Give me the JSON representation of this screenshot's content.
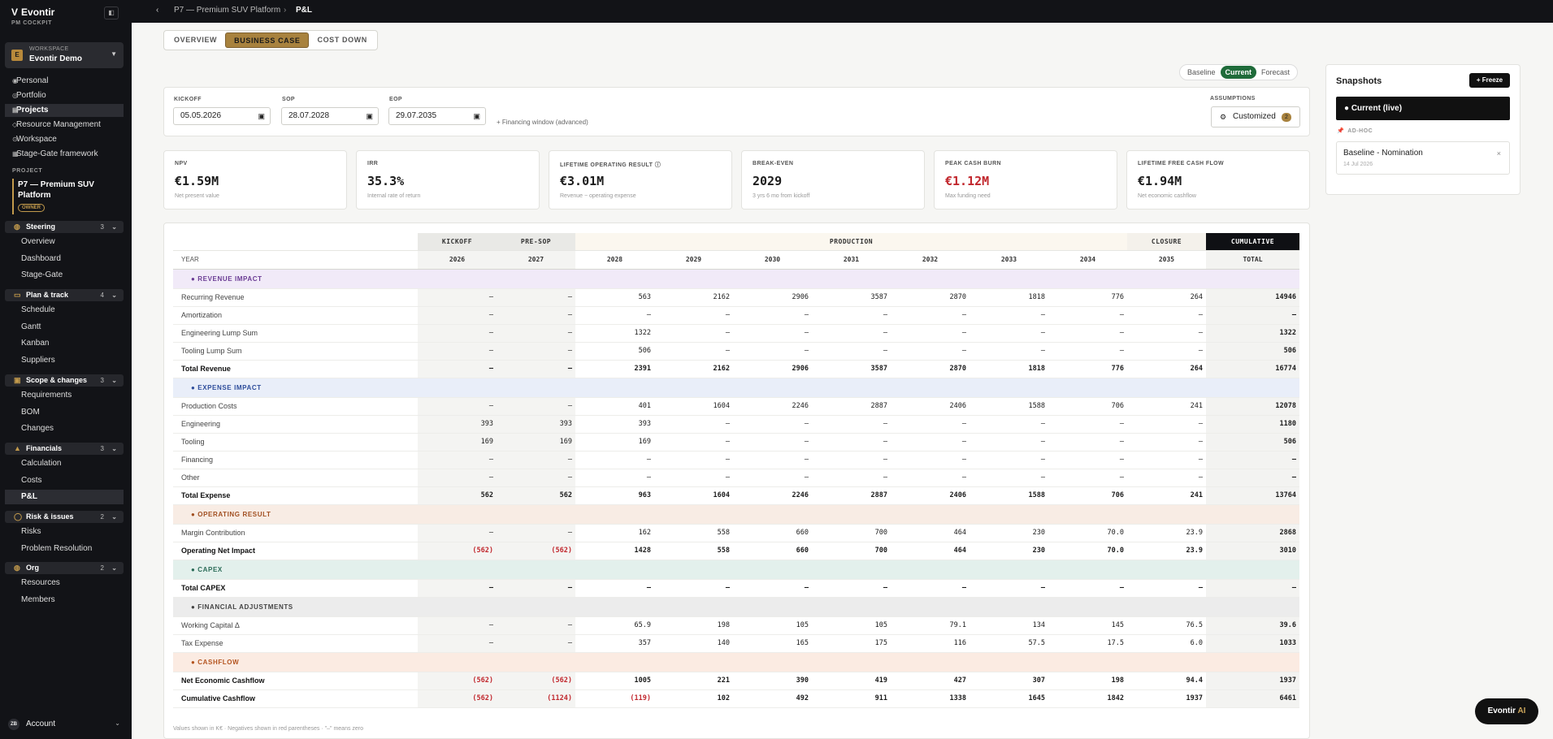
{
  "app": {
    "name": "Evontir",
    "subtitle": "PM COCKPIT",
    "logo": "V"
  },
  "workspace": {
    "label": "WORKSPACE",
    "name": "Evontir Demo",
    "badge": "E"
  },
  "nav": [
    {
      "label": "Personal",
      "icon": "user-icon"
    },
    {
      "label": "Portfolio",
      "icon": "portfolio-icon"
    },
    {
      "label": "Projects",
      "icon": "projects-icon",
      "active": true
    },
    {
      "label": "Resource Management",
      "icon": "resource-icon"
    },
    {
      "label": "Workspace",
      "icon": "workspace-icon"
    },
    {
      "label": "Stage-Gate framework",
      "icon": "stagegate-icon"
    }
  ],
  "project": {
    "label": "PROJECT",
    "name": "P7 — Premium SUV Platform",
    "role": "OWNER"
  },
  "groups": [
    {
      "label": "Steering",
      "count": "3",
      "items": [
        "Overview",
        "Dashboard",
        "Stage-Gate"
      ]
    },
    {
      "label": "Plan & track",
      "count": "4",
      "items": [
        "Schedule",
        "Gantt",
        "Kanban",
        "Suppliers"
      ]
    },
    {
      "label": "Scope & changes",
      "count": "3",
      "items": [
        "Requirements",
        "BOM",
        "Changes"
      ]
    },
    {
      "label": "Financials",
      "count": "3",
      "items": [
        "Calculation",
        "Costs",
        "P&L"
      ]
    },
    {
      "label": "Risk & issues",
      "count": "2",
      "items": [
        "Risks",
        "Problem Resolution"
      ]
    },
    {
      "label": "Org",
      "count": "2",
      "items": [
        "Resources",
        "Members"
      ]
    }
  ],
  "account": {
    "label": "Account",
    "initials": "ZB"
  },
  "breadcrumb": {
    "project": "P7 — Premium SUV Platform",
    "separator": "›",
    "page": "P&L"
  },
  "tabs": [
    "OVERVIEW",
    "BUSINESS CASE",
    "COST DOWN"
  ],
  "scenarios": [
    "Baseline",
    "Current",
    "Forecast"
  ],
  "dates": {
    "kickoff_label": "KICKOFF",
    "kickoff": "05.05.2026",
    "sop_label": "SOP",
    "sop": "28.07.2028",
    "eop_label": "EOP",
    "eop": "29.07.2035",
    "financing_link": "+ Financing window (advanced)"
  },
  "assumptions": {
    "label": "ASSUMPTIONS",
    "button": "Customized",
    "count": "2"
  },
  "kpis": [
    {
      "label": "NPV",
      "value": "€1.59M",
      "sub": "Net present value",
      "red": false
    },
    {
      "label": "IRR",
      "value": "35.3%",
      "sub": "Internal rate of return",
      "red": false
    },
    {
      "label": "LIFETIME OPERATING RESULT ⓘ",
      "value": "€3.01M",
      "sub": "Revenue − operating expense",
      "red": false
    },
    {
      "label": "BREAK-EVEN",
      "value": "2029",
      "sub": "3 yrs 6 mo from kickoff",
      "red": false
    },
    {
      "label": "PEAK CASH BURN",
      "value": "€1.12M",
      "sub": "Max funding need",
      "red": true
    },
    {
      "label": "LIFETIME FREE CASH FLOW",
      "value": "€1.94M",
      "sub": "Net economic cashflow",
      "red": false
    }
  ],
  "snapshots": {
    "title": "Snapshots",
    "freeze": "+ Freeze",
    "current": "● Current (live)",
    "adhoc": "AD-HOC",
    "item_title": "Baseline - Nomination",
    "item_date": "14 Jul 2026"
  },
  "table": {
    "phases": {
      "kickoff": "KICKOFF",
      "presop": "PRE-SOP",
      "production": "PRODUCTION",
      "closure": "CLOSURE",
      "cumulative": "CUMULATIVE"
    },
    "year_label": "YEAR",
    "years": [
      "2026",
      "2027",
      "2028",
      "2029",
      "2030",
      "2031",
      "2032",
      "2033",
      "2034",
      "2035"
    ],
    "total_label": "TOTAL",
    "rows": [
      {
        "type": "sec",
        "cls": "s-rev",
        "label": "● REVENUE IMPACT"
      },
      {
        "label": "Recurring Revenue",
        "v": [
          "–",
          "–",
          "563",
          "2162",
          "2906",
          "3587",
          "2870",
          "1818",
          "776",
          "264",
          "14946"
        ]
      },
      {
        "label": "Amortization",
        "v": [
          "–",
          "–",
          "–",
          "–",
          "–",
          "–",
          "–",
          "–",
          "–",
          "–",
          "–"
        ]
      },
      {
        "label": "Engineering Lump Sum",
        "v": [
          "–",
          "–",
          "1322",
          "–",
          "–",
          "–",
          "–",
          "–",
          "–",
          "–",
          "1322"
        ]
      },
      {
        "label": "Tooling Lump Sum",
        "v": [
          "–",
          "–",
          "506",
          "–",
          "–",
          "–",
          "–",
          "–",
          "–",
          "–",
          "506"
        ]
      },
      {
        "label": "Total Revenue",
        "total": true,
        "v": [
          "–",
          "–",
          "2391",
          "2162",
          "2906",
          "3587",
          "2870",
          "1818",
          "776",
          "264",
          "16774"
        ]
      },
      {
        "type": "sec",
        "cls": "s-exp",
        "label": "● EXPENSE IMPACT"
      },
      {
        "label": "Production Costs",
        "v": [
          "–",
          "–",
          "401",
          "1604",
          "2246",
          "2887",
          "2406",
          "1588",
          "706",
          "241",
          "12078"
        ]
      },
      {
        "label": "Engineering",
        "v": [
          "393",
          "393",
          "393",
          "–",
          "–",
          "–",
          "–",
          "–",
          "–",
          "–",
          "1180"
        ]
      },
      {
        "label": "Tooling",
        "v": [
          "169",
          "169",
          "169",
          "–",
          "–",
          "–",
          "–",
          "–",
          "–",
          "–",
          "506"
        ]
      },
      {
        "label": "Financing",
        "v": [
          "–",
          "–",
          "–",
          "–",
          "–",
          "–",
          "–",
          "–",
          "–",
          "–",
          "–"
        ]
      },
      {
        "label": "Other",
        "v": [
          "–",
          "–",
          "–",
          "–",
          "–",
          "–",
          "–",
          "–",
          "–",
          "–",
          "–"
        ]
      },
      {
        "label": "Total Expense",
        "total": true,
        "v": [
          "562",
          "562",
          "963",
          "1604",
          "2246",
          "2887",
          "2406",
          "1588",
          "706",
          "241",
          "13764"
        ]
      },
      {
        "type": "sec",
        "cls": "s-op",
        "label": "● OPERATING RESULT"
      },
      {
        "label": "Margin Contribution",
        "v": [
          "–",
          "–",
          "162",
          "558",
          "660",
          "700",
          "464",
          "230",
          "70.0",
          "23.9",
          "2868"
        ]
      },
      {
        "label": "Operating Net Impact",
        "total": true,
        "v": [
          "(562)",
          "(562)",
          "1428",
          "558",
          "660",
          "700",
          "464",
          "230",
          "70.0",
          "23.9",
          "3010"
        ]
      },
      {
        "type": "sec",
        "cls": "s-cap",
        "label": "● CAPEX"
      },
      {
        "label": "Total CAPEX",
        "total": true,
        "v": [
          "–",
          "–",
          "–",
          "–",
          "–",
          "–",
          "–",
          "–",
          "–",
          "–",
          "–"
        ]
      },
      {
        "type": "sec",
        "cls": "s-fa",
        "label": "● FINANCIAL ADJUSTMENTS"
      },
      {
        "label": "Working Capital Δ",
        "v": [
          "–",
          "–",
          "65.9",
          "198",
          "105",
          "105",
          "79.1",
          "134",
          "145",
          "76.5",
          "39.6"
        ]
      },
      {
        "label": "Tax Expense",
        "v": [
          "–",
          "–",
          "357",
          "140",
          "165",
          "175",
          "116",
          "57.5",
          "17.5",
          "6.0",
          "1033"
        ]
      },
      {
        "type": "sec",
        "cls": "s-cf",
        "label": "● CASHFLOW"
      },
      {
        "label": "Net Economic Cashflow",
        "total": true,
        "v": [
          "(562)",
          "(562)",
          "1005",
          "221",
          "390",
          "419",
          "427",
          "307",
          "198",
          "94.4",
          "1937"
        ]
      },
      {
        "label": "Cumulative Cashflow",
        "total": true,
        "v": [
          "(562)",
          "(1124)",
          "(119)",
          "102",
          "492",
          "911",
          "1338",
          "1645",
          "1842",
          "1937",
          "6461"
        ]
      }
    ]
  },
  "footnote": "Values shown in K€ · Negatives shown in red parentheses · \"–\" means zero",
  "ai_button": {
    "label": "Evontir",
    "accent": "AI"
  }
}
